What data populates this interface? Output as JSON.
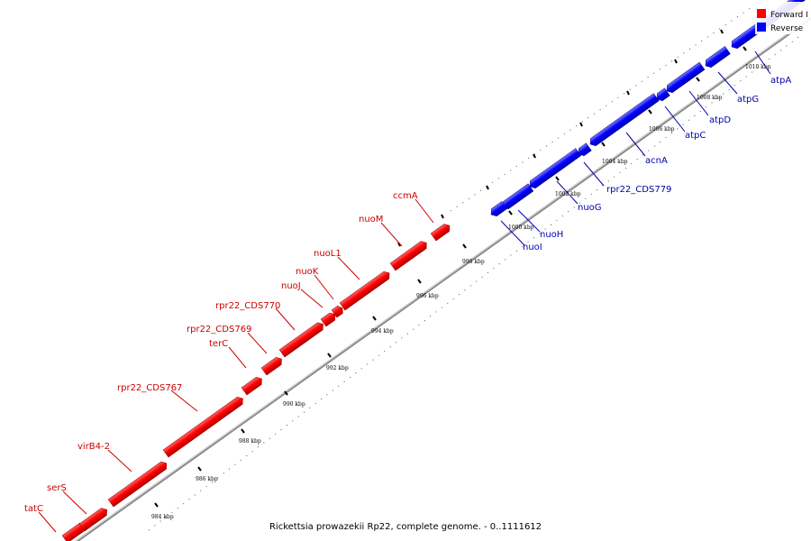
{
  "caption": "Rickettsia prowazekii Rp22, complete genome. - 0..1111612",
  "legend": [
    {
      "label": "Forward I",
      "color": "#ff0000"
    },
    {
      "label": "Reverse",
      "color": "#0000ff"
    }
  ],
  "colors": {
    "forward_label": "#cc0000",
    "reverse_label": "#0000aa",
    "backbone": "#808080",
    "tick": "#000000"
  },
  "axis_ticks": [
    "984 kbp",
    "986 kbp",
    "988 kbp",
    "990 kbp",
    "992 kbp",
    "994 kbp",
    "996 kbp",
    "998 kbp",
    "1000 kbp",
    "1002 kbp",
    "1004 kbp",
    "1006 kbp",
    "1008 kbp",
    "1010 kbp"
  ],
  "forward_genes": [
    "tatC",
    "serS",
    "virB4-2",
    "rpr22_CDS767",
    "terC",
    "rpr22_CDS769",
    "rpr22_CDS770",
    "nuoJ",
    "nuoK",
    "nuoL1",
    "nuoM",
    "ccmA"
  ],
  "reverse_genes": [
    "nuoI",
    "nuoH",
    "nuoG",
    "rpr22_CDS779",
    "acnA",
    "atpC",
    "atpD",
    "atpG",
    "atpA"
  ]
}
